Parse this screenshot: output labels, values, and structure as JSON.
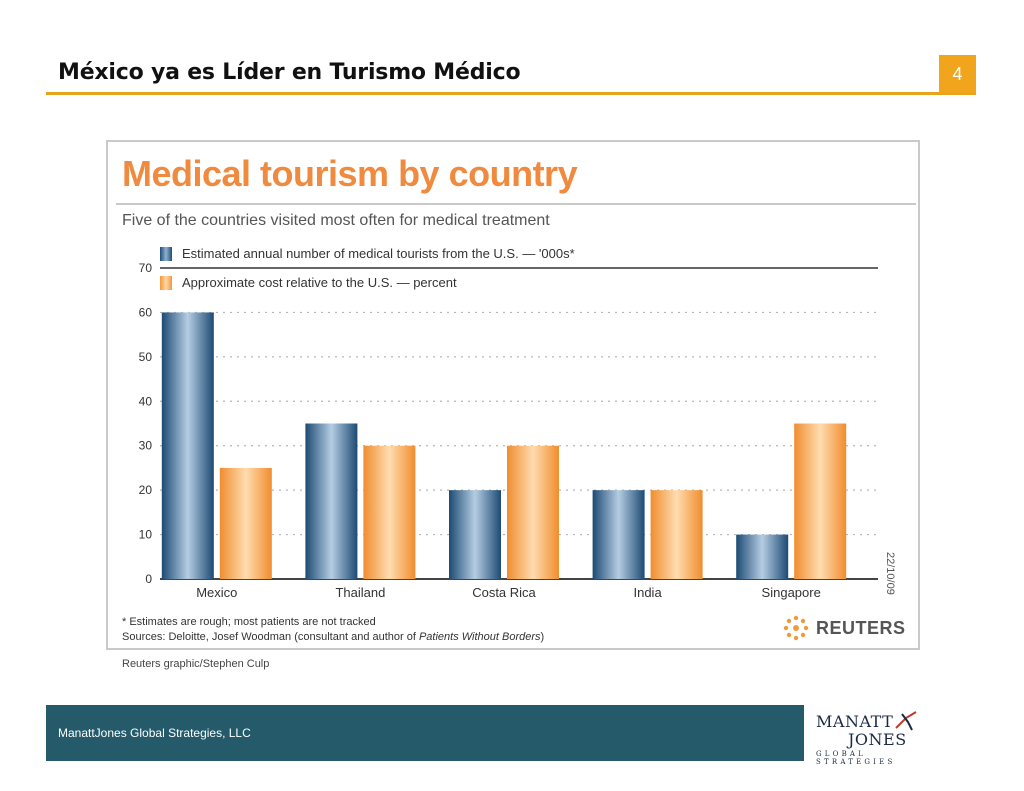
{
  "slide": {
    "title": "México ya es Líder en Turismo Médico",
    "page_number": "4",
    "accent_color": "#e8a51c"
  },
  "chart_data": {
    "type": "bar",
    "title": "Medical tourism by country",
    "subtitle": "Five of the countries visited most often for medical treatment",
    "categories": [
      "Mexico",
      "Thailand",
      "Costa Rica",
      "India",
      "Singapore"
    ],
    "series": [
      {
        "name": "Estimated annual number of medical tourists from the U.S. — '000s*",
        "values": [
          60,
          35,
          20,
          20,
          10
        ],
        "color": "#2a5f8a"
      },
      {
        "name": "Approximate cost relative to the U.S. — percent",
        "values": [
          25,
          30,
          30,
          20,
          35
        ],
        "color": "#f4a04a"
      }
    ],
    "yticks": [
      0,
      10,
      20,
      30,
      40,
      50,
      60,
      70
    ],
    "ylim": [
      0,
      70
    ],
    "grid": true,
    "legend_position": "top-left",
    "date_stamp": "22/10/09",
    "footnote": "* Estimates are rough; most patients are not tracked",
    "sources_prefix": "Sources: Deloitte, Josef Woodman (consultant and author of ",
    "sources_book": "Patients Without Borders",
    "sources_suffix": ")",
    "credit": "Reuters graphic/Stephen Culp",
    "logo_text": "REUTERS"
  },
  "footer": {
    "company": "ManattJones Global Strategies, LLC",
    "logo_line1": "MANATT",
    "logo_line2": "JONES",
    "logo_tagline": "GLOBAL STRATEGIES",
    "bar_color": "#245a6a"
  }
}
